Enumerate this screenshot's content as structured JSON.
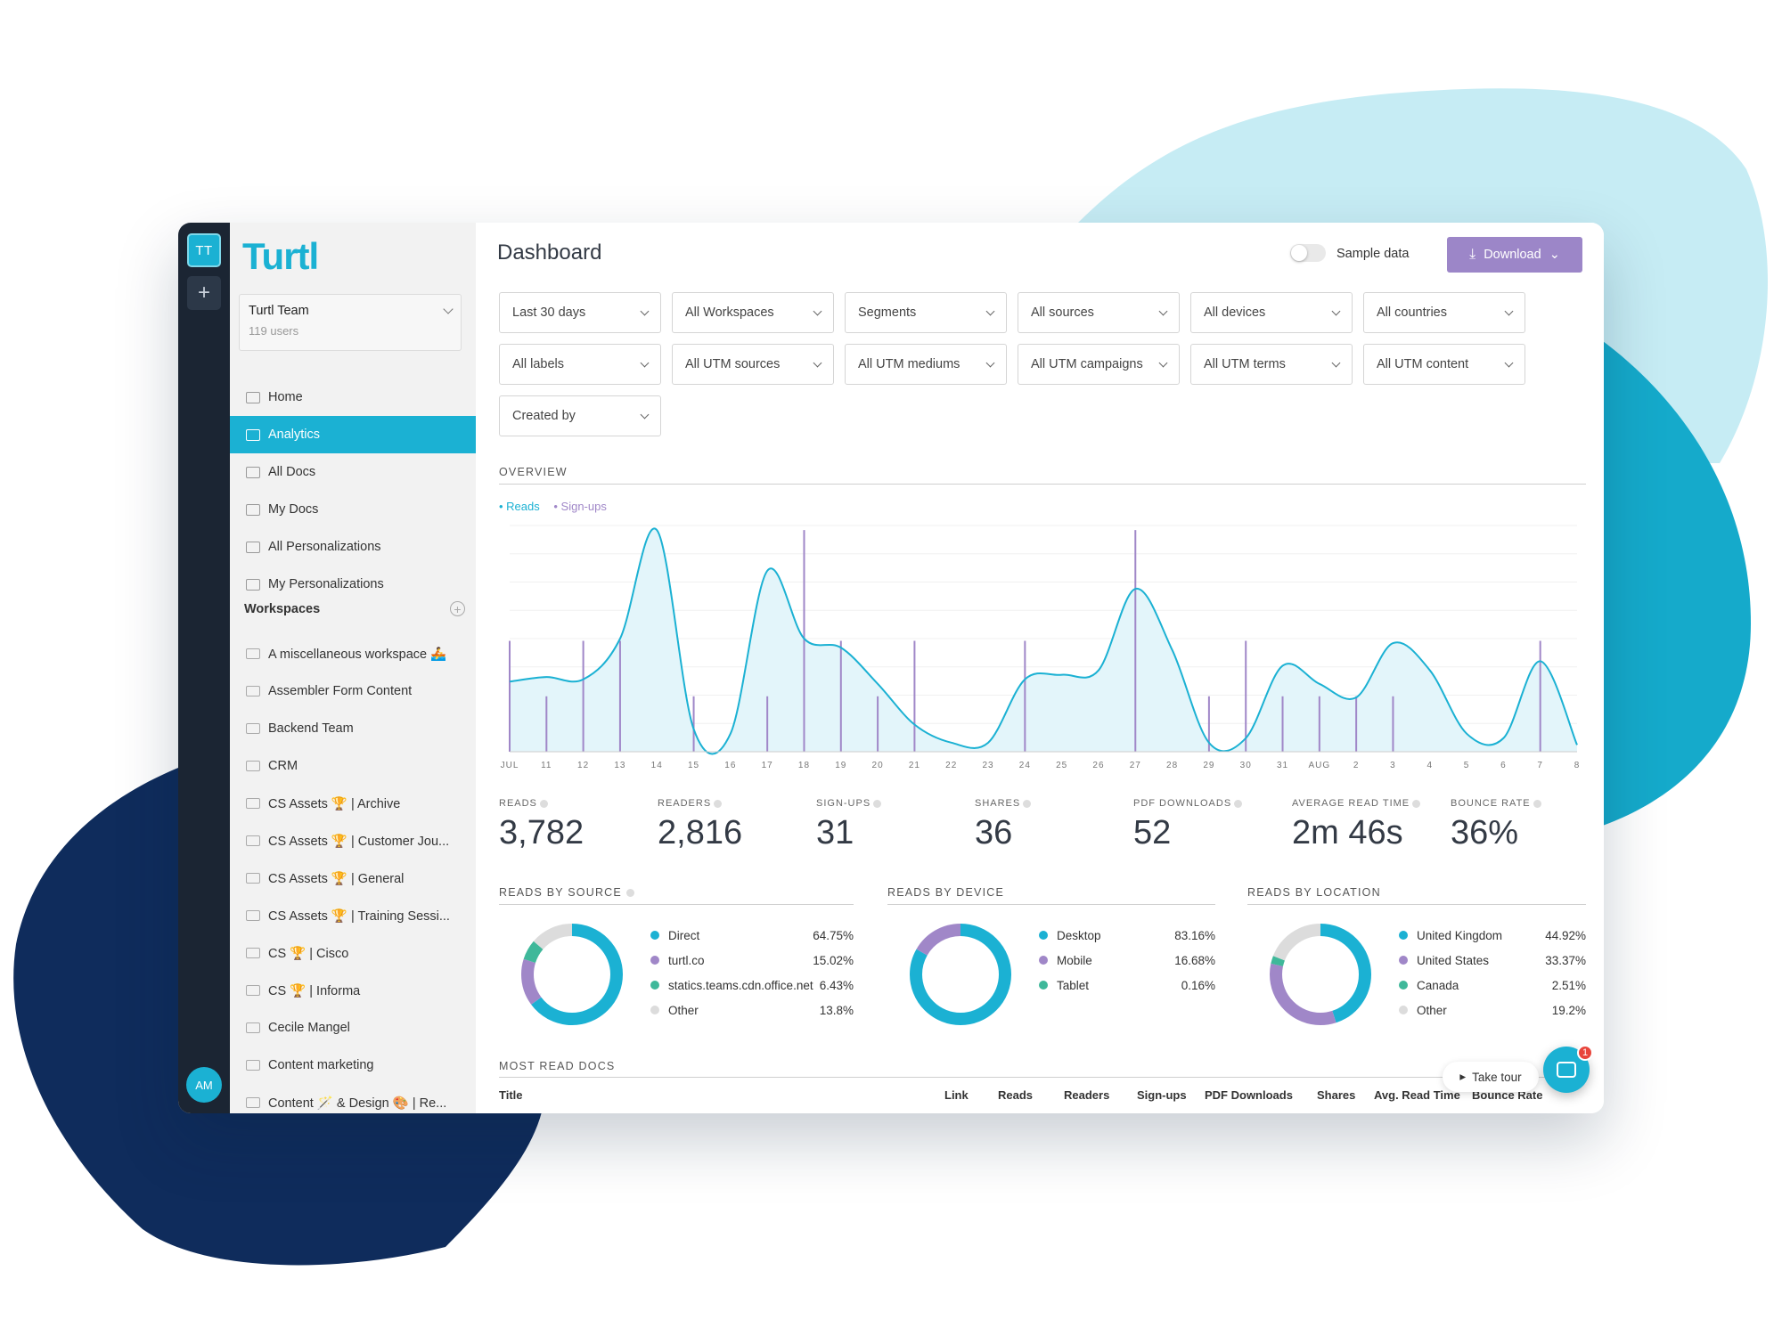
{
  "colors": {
    "accent": "#1bb1d3",
    "signups": "#a087c8",
    "download": "#9c86c8",
    "green": "#3fb89a",
    "grey": "#dcdcdc"
  },
  "rail": {
    "team_initials": "TT",
    "add_label": "+",
    "user_initials": "AM"
  },
  "sidebar": {
    "logo": "Turtl",
    "team": {
      "name": "Turtl Team",
      "users": "119 users"
    },
    "nav": [
      {
        "label": "Home",
        "icon": "home-icon"
      },
      {
        "label": "Analytics",
        "icon": "analytics-icon",
        "active": true
      },
      {
        "label": "All Docs",
        "icon": "docs-icon"
      },
      {
        "label": "My Docs",
        "icon": "folder-icon"
      },
      {
        "label": "All Personalizations",
        "icon": "personalization-icon"
      },
      {
        "label": "My Personalizations",
        "icon": "personalization-icon"
      }
    ],
    "workspaces_heading": "Workspaces",
    "workspaces": [
      "A miscellaneous workspace 🚣",
      "Assembler Form Content",
      "Backend Team",
      "CRM",
      "CS Assets 🏆 | Archive",
      "CS Assets 🏆 | Customer Jou...",
      "CS Assets 🏆 | General",
      "CS Assets 🏆 | Training Sessi...",
      "CS 🏆 | Cisco",
      "CS 🏆 | Informa",
      "Cecile Mangel",
      "Content marketing",
      "Content 🪄 & Design 🎨 | Re..."
    ]
  },
  "header": {
    "title": "Dashboard",
    "sample_label": "Sample data",
    "download_label": "Download"
  },
  "filters": [
    [
      "Last 30 days",
      "All Workspaces",
      "Segments",
      "All sources",
      "All devices",
      "All countries"
    ],
    [
      "All labels",
      "All UTM sources",
      "All UTM mediums",
      "All UTM campaigns",
      "All UTM terms",
      "All UTM content"
    ],
    [
      "Created by"
    ]
  ],
  "overview": {
    "label": "OVERVIEW",
    "legend_reads": "• Reads",
    "legend_signups": "• Sign-ups"
  },
  "chart_data": {
    "type": "line",
    "x": [
      "JUL",
      "11",
      "12",
      "13",
      "14",
      "15",
      "16",
      "17",
      "18",
      "19",
      "20",
      "21",
      "22",
      "23",
      "24",
      "25",
      "26",
      "27",
      "28",
      "29",
      "30",
      "31",
      "AUG",
      "2",
      "3",
      "4",
      "5",
      "6",
      "7",
      "8"
    ],
    "series": [
      {
        "name": "Reads",
        "values": [
          31,
          33,
          32,
          50,
          98,
          10,
          8,
          80,
          50,
          46,
          30,
          12,
          4,
          4,
          32,
          34,
          36,
          72,
          45,
          4,
          6,
          38,
          30,
          24,
          48,
          36,
          8,
          6,
          40,
          3
        ]
      },
      {
        "name": "Sign-ups",
        "values": [
          1,
          0.5,
          1,
          1,
          0,
          0.5,
          0,
          0.5,
          2,
          1,
          0.5,
          1,
          0,
          0,
          1,
          0,
          0,
          2,
          0,
          0.5,
          1,
          0.5,
          0.5,
          0.5,
          0.5,
          0,
          0,
          0,
          1,
          0
        ]
      }
    ],
    "ylim": [
      0,
      100
    ],
    "signups_ylim": [
      0,
      2
    ]
  },
  "stats": [
    {
      "label": "READS",
      "value": "3,782"
    },
    {
      "label": "READERS",
      "value": "2,816"
    },
    {
      "label": "SIGN-UPS",
      "value": "31"
    },
    {
      "label": "SHARES",
      "value": "36"
    },
    {
      "label": "PDF DOWNLOADS",
      "value": "52"
    },
    {
      "label": "AVERAGE READ TIME",
      "value": "2m 46s"
    },
    {
      "label": "BOUNCE RATE",
      "value": "36%"
    }
  ],
  "breakdowns": [
    {
      "label": "READS BY SOURCE",
      "help": true,
      "items": [
        {
          "name": "Direct",
          "pct": "64.75%",
          "value": 64.75,
          "color": "#1bb1d3"
        },
        {
          "name": "turtl.co",
          "pct": "15.02%",
          "value": 15.02,
          "color": "#a087c8"
        },
        {
          "name": "statics.teams.cdn.office.net",
          "pct": "6.43%",
          "value": 6.43,
          "color": "#3fb89a"
        },
        {
          "name": "Other",
          "pct": "13.8%",
          "value": 13.8,
          "color": "#dcdcdc"
        }
      ]
    },
    {
      "label": "READS BY DEVICE",
      "help": false,
      "items": [
        {
          "name": "Desktop",
          "pct": "83.16%",
          "value": 83.16,
          "color": "#1bb1d3"
        },
        {
          "name": "Mobile",
          "pct": "16.68%",
          "value": 16.68,
          "color": "#a087c8"
        },
        {
          "name": "Tablet",
          "pct": "0.16%",
          "value": 0.16,
          "color": "#3fb89a"
        }
      ]
    },
    {
      "label": "READS BY LOCATION",
      "help": false,
      "items": [
        {
          "name": "United Kingdom",
          "pct": "44.92%",
          "value": 44.92,
          "color": "#1bb1d3"
        },
        {
          "name": "United States",
          "pct": "33.37%",
          "value": 33.37,
          "color": "#a087c8"
        },
        {
          "name": "Canada",
          "pct": "2.51%",
          "value": 2.51,
          "color": "#3fb89a"
        },
        {
          "name": "Other",
          "pct": "19.2%",
          "value": 19.2,
          "color": "#dcdcdc"
        }
      ]
    }
  ],
  "most_read": {
    "label": "MOST READ DOCS",
    "columns": [
      "Title",
      "Link",
      "Reads",
      "Readers",
      "Sign-ups",
      "PDF Downloads",
      "Shares",
      "Avg. Read Time",
      "Bounce Rate"
    ]
  },
  "tour_label": "Take tour",
  "chat_badge": "1"
}
